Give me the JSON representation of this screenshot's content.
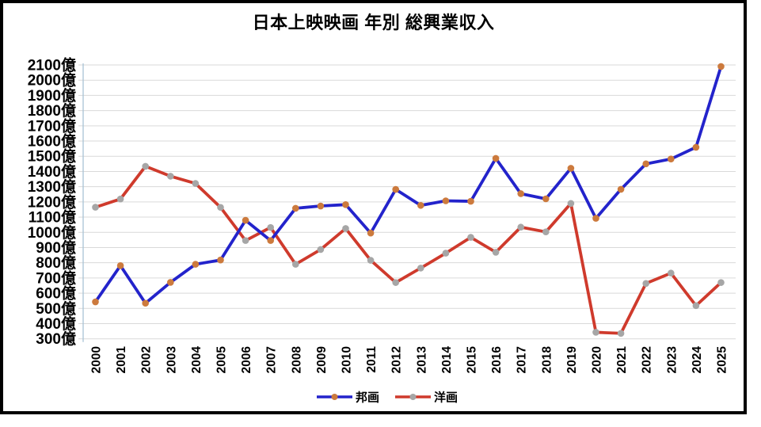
{
  "chart_data": {
    "type": "line",
    "title": "日本上映映画 年別 総興業収入",
    "x": [
      "2000",
      "2001",
      "2002",
      "2003",
      "2004",
      "2005",
      "2006",
      "2007",
      "2008",
      "2009",
      "2010",
      "2011",
      "2012",
      "2013",
      "2014",
      "2015",
      "2016",
      "2017",
      "2018",
      "2019",
      "2020",
      "2021",
      "2022",
      "2023",
      "2024",
      "2025"
    ],
    "xlabel": "",
    "ylabel": "",
    "y_unit_suffix": "億",
    "ylim": [
      300,
      2100
    ],
    "y_tick_step": 100,
    "grid": true,
    "legend_position": "bottom-center",
    "series": [
      {
        "name": "邦画",
        "line_color": "#2323cb",
        "marker_color": "#cc7a3d",
        "values": [
          543,
          781,
          534,
          671,
          790,
          818,
          1079,
          946,
          1158,
          1173,
          1182,
          995,
          1282,
          1177,
          1207,
          1204,
          1486,
          1254,
          1220,
          1421,
          1092,
          1283,
          1450,
          1482,
          1559,
          2090
        ]
      },
      {
        "name": "洋画",
        "line_color": "#cf3a2c",
        "marker_color": "#a6a6a6",
        "values": [
          1165,
          1219,
          1434,
          1369,
          1321,
          1164,
          946,
          1032,
          790,
          887,
          1025,
          816,
          670,
          765,
          863,
          967,
          869,
          1034,
          1003,
          1190,
          343,
          336,
          664,
          732,
          518,
          670
        ]
      }
    ]
  },
  "colors": {
    "background": "#ffffff",
    "frame_border": "#000000",
    "gridline": "#d9d9d9",
    "axis_line": "#a9c3d5",
    "text": "#000000"
  }
}
